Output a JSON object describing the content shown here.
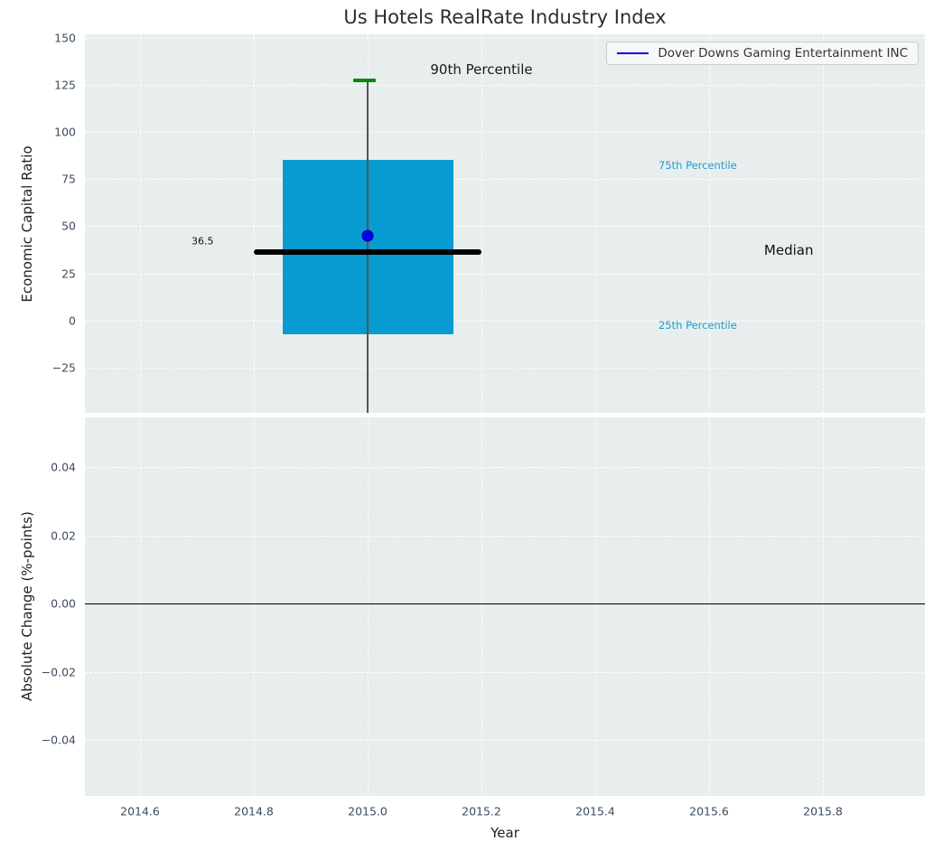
{
  "figure": {
    "title": "Us Hotels RealRate Industry Index",
    "plot_background": "#e8edee",
    "grid_color": "#ffffff"
  },
  "legend": {
    "label": "Dover Downs Gaming Entertainment INC",
    "line_color": "#0000ee"
  },
  "chart_data": [
    {
      "type": "boxplot",
      "title": "Us Hotels RealRate Industry Index",
      "ylabel": "Economic Capital Ratio",
      "ylim": [
        -51.5,
        152
      ],
      "grid": "dashed-white",
      "yticks": [
        {
          "value": 150,
          "label": "150"
        },
        {
          "value": 125,
          "label": "125"
        },
        {
          "value": 100,
          "label": "100"
        },
        {
          "value": 75,
          "label": "75"
        },
        {
          "value": 50,
          "label": "50"
        },
        {
          "value": 25,
          "label": "25"
        },
        {
          "value": 0,
          "label": "0"
        },
        {
          "value": -25,
          "label": "−25"
        }
      ],
      "box": {
        "x_center": 2015.0,
        "p90": 127.5,
        "p75": 85,
        "median": 36.5,
        "p25": -7.5,
        "whisker_low_clipped_below_axis": true,
        "box_x_range": [
          2014.85,
          2015.15
        ],
        "median_x_range": [
          2014.8,
          2015.2
        ],
        "cap_x_range": [
          2014.975,
          2015.015
        ],
        "box_color": "#089bd1",
        "median_color": "#000000",
        "cap_color": "#078a07",
        "whisker_color": "#555555"
      },
      "company_point": {
        "name": "Dover Downs Gaming Entertainment INC",
        "x": 2015.0,
        "y": 45,
        "color": "#0000ee"
      },
      "annotations": [
        {
          "text": "90th Percentile",
          "x": 2015.2,
          "y": 133.0,
          "size": 15,
          "color": "#1a1a1a"
        },
        {
          "text": "75th Percentile",
          "x": 2015.58,
          "y": 82.5,
          "size": 11.5,
          "color": "#1d9ecd"
        },
        {
          "text": "Median",
          "x": 2015.74,
          "y": 37.0,
          "size": 15,
          "color": "#111111"
        },
        {
          "text": "25th Percentile",
          "x": 2015.58,
          "y": -2.5,
          "size": 11.5,
          "color": "#1d9ecd"
        },
        {
          "text": "36.5",
          "x": 2014.71,
          "y": 42.0,
          "size": 11,
          "color": "#111111"
        }
      ],
      "legend_entries": [
        {
          "label": "Dover Downs Gaming Entertainment INC",
          "line_color": "#0000ee"
        }
      ]
    },
    {
      "type": "line",
      "ylabel": "Absolute Change (%-points)",
      "xlabel": "Year",
      "ylim": [
        -0.055,
        0.055
      ],
      "grid": "dashed-white",
      "yticks": [
        {
          "value": 0.04,
          "label": "0.04"
        },
        {
          "value": 0.02,
          "label": "0.02"
        },
        {
          "value": 0.0,
          "label": "0.00"
        },
        {
          "value": -0.02,
          "label": "−0.02"
        },
        {
          "value": -0.04,
          "label": "−0.04"
        }
      ],
      "xticks": [
        {
          "value": 2014.6,
          "label": "2014.6"
        },
        {
          "value": 2014.8,
          "label": "2014.8"
        },
        {
          "value": 2015.0,
          "label": "2015.0"
        },
        {
          "value": 2015.2,
          "label": "2015.2"
        },
        {
          "value": 2015.4,
          "label": "2015.4"
        },
        {
          "value": 2015.6,
          "label": "2015.6"
        },
        {
          "value": 2015.8,
          "label": "2015.8"
        }
      ],
      "zero_line": 0.0,
      "series": []
    }
  ]
}
